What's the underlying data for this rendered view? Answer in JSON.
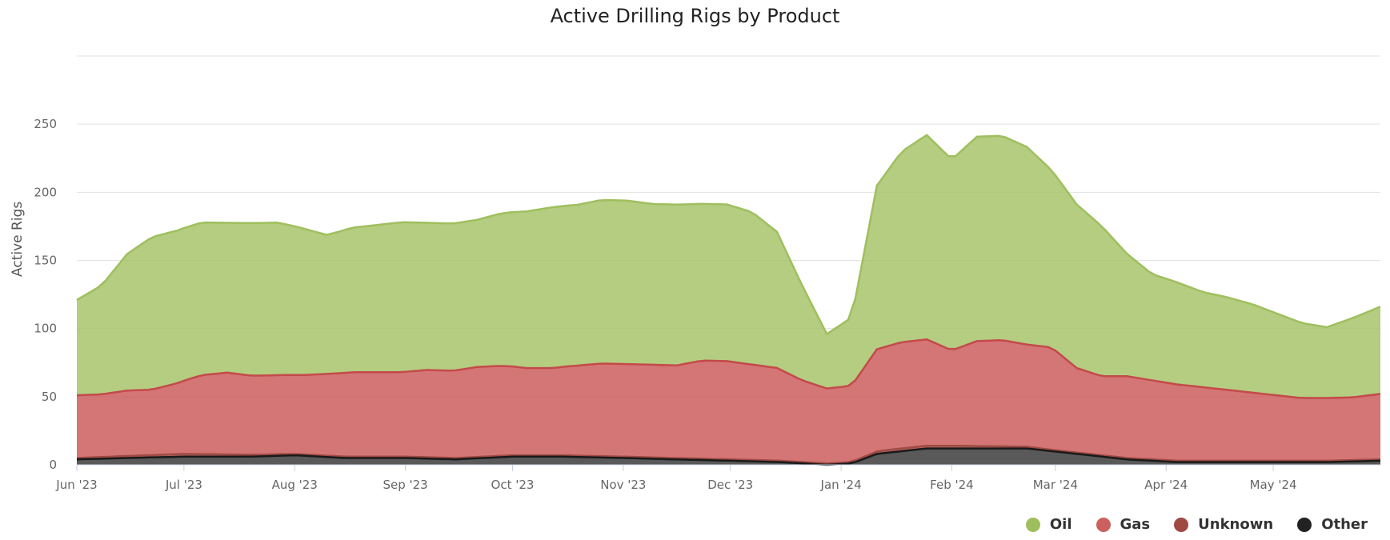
{
  "chart_data": {
    "type": "area",
    "stacked": true,
    "title": "Active Drilling Rigs by Product",
    "xlabel": "",
    "ylabel": "Active Rigs",
    "x_start": "2023-06-01",
    "x_end": "2024-05-31",
    "x_tick_labels": [
      "Jun '23",
      "Jul '23",
      "Aug '23",
      "Sep '23",
      "Oct '23",
      "Nov '23",
      "Dec '23",
      "Jan '24",
      "Feb '24",
      "Mar '24",
      "Apr '24",
      "May '24"
    ],
    "y_ticks": [
      0,
      50,
      100,
      150,
      200,
      250
    ],
    "ylim": [
      0,
      300
    ],
    "grid": true,
    "legend_position": "bottom-right",
    "series": [
      {
        "name": "Oil",
        "color": "#9fbf5e",
        "points": [
          [
            "2023-06-01",
            70
          ],
          [
            "2023-06-08",
            80
          ],
          [
            "2023-06-15",
            100
          ],
          [
            "2023-06-22",
            112
          ],
          [
            "2023-06-29",
            112
          ],
          [
            "2023-07-06",
            112
          ],
          [
            "2023-07-13",
            110
          ],
          [
            "2023-07-20",
            112
          ],
          [
            "2023-07-27",
            112
          ],
          [
            "2023-08-03",
            108
          ],
          [
            "2023-08-10",
            102
          ],
          [
            "2023-08-17",
            106
          ],
          [
            "2023-08-24",
            108
          ],
          [
            "2023-08-31",
            110
          ],
          [
            "2023-09-07",
            108
          ],
          [
            "2023-09-14",
            108
          ],
          [
            "2023-09-21",
            108
          ],
          [
            "2023-09-28",
            112
          ],
          [
            "2023-10-05",
            115
          ],
          [
            "2023-10-12",
            118
          ],
          [
            "2023-10-19",
            118
          ],
          [
            "2023-10-26",
            120
          ],
          [
            "2023-11-02",
            120
          ],
          [
            "2023-11-09",
            118
          ],
          [
            "2023-11-16",
            118
          ],
          [
            "2023-11-23",
            115
          ],
          [
            "2023-11-30",
            115
          ],
          [
            "2023-12-07",
            112
          ],
          [
            "2023-12-14",
            100
          ],
          [
            "2023-12-21",
            70
          ],
          [
            "2023-12-28",
            40
          ],
          [
            "2024-01-04",
            50
          ],
          [
            "2024-01-11",
            120
          ],
          [
            "2024-01-18",
            140
          ],
          [
            "2024-01-25",
            150
          ],
          [
            "2024-02-01",
            140
          ],
          [
            "2024-02-08",
            150
          ],
          [
            "2024-02-15",
            150
          ],
          [
            "2024-02-22",
            145
          ],
          [
            "2024-02-29",
            130
          ],
          [
            "2024-03-07",
            120
          ],
          [
            "2024-03-14",
            110
          ],
          [
            "2024-03-21",
            90
          ],
          [
            "2024-03-28",
            78
          ],
          [
            "2024-04-04",
            75
          ],
          [
            "2024-04-11",
            70
          ],
          [
            "2024-04-18",
            68
          ],
          [
            "2024-04-25",
            65
          ],
          [
            "2024-05-02",
            60
          ],
          [
            "2024-05-09",
            55
          ],
          [
            "2024-05-16",
            52
          ],
          [
            "2024-05-23",
            58
          ],
          [
            "2024-05-31",
            64
          ]
        ]
      },
      {
        "name": "Gas",
        "color": "#cc6060",
        "points": [
          [
            "2023-06-01",
            46
          ],
          [
            "2023-06-08",
            46
          ],
          [
            "2023-06-15",
            48
          ],
          [
            "2023-06-22",
            48
          ],
          [
            "2023-06-29",
            52
          ],
          [
            "2023-07-06",
            58
          ],
          [
            "2023-07-13",
            60
          ],
          [
            "2023-07-20",
            58
          ],
          [
            "2023-07-27",
            58
          ],
          [
            "2023-08-03",
            58
          ],
          [
            "2023-08-10",
            60
          ],
          [
            "2023-08-17",
            62
          ],
          [
            "2023-08-24",
            62
          ],
          [
            "2023-08-31",
            62
          ],
          [
            "2023-09-07",
            64
          ],
          [
            "2023-09-14",
            64
          ],
          [
            "2023-09-21",
            66
          ],
          [
            "2023-09-28",
            66
          ],
          [
            "2023-10-05",
            64
          ],
          [
            "2023-10-12",
            64
          ],
          [
            "2023-10-19",
            66
          ],
          [
            "2023-10-26",
            68
          ],
          [
            "2023-11-02",
            68
          ],
          [
            "2023-11-09",
            68
          ],
          [
            "2023-11-16",
            68
          ],
          [
            "2023-11-23",
            72
          ],
          [
            "2023-11-30",
            72
          ],
          [
            "2023-12-07",
            70
          ],
          [
            "2023-12-14",
            68
          ],
          [
            "2023-12-21",
            60
          ],
          [
            "2023-12-28",
            55
          ],
          [
            "2024-01-04",
            56
          ],
          [
            "2024-01-11",
            75
          ],
          [
            "2024-01-18",
            78
          ],
          [
            "2024-01-25",
            78
          ],
          [
            "2024-02-01",
            70
          ],
          [
            "2024-02-08",
            77
          ],
          [
            "2024-02-15",
            78
          ],
          [
            "2024-02-22",
            75
          ],
          [
            "2024-02-29",
            75
          ],
          [
            "2024-03-07",
            62
          ],
          [
            "2024-03-14",
            58
          ],
          [
            "2024-03-21",
            60
          ],
          [
            "2024-03-28",
            58
          ],
          [
            "2024-04-04",
            56
          ],
          [
            "2024-04-11",
            54
          ],
          [
            "2024-04-18",
            52
          ],
          [
            "2024-04-25",
            50
          ],
          [
            "2024-05-02",
            48
          ],
          [
            "2024-05-09",
            46
          ],
          [
            "2024-05-16",
            46
          ],
          [
            "2024-05-23",
            46
          ],
          [
            "2024-05-31",
            48
          ]
        ]
      },
      {
        "name": "Unknown",
        "color": "#a04a44",
        "points": [
          [
            "2023-06-01",
            1
          ],
          [
            "2023-07-01",
            2
          ],
          [
            "2023-08-01",
            1
          ],
          [
            "2023-09-01",
            1
          ],
          [
            "2023-10-01",
            1
          ],
          [
            "2023-11-01",
            1
          ],
          [
            "2023-12-01",
            1
          ],
          [
            "2024-01-01",
            1
          ],
          [
            "2024-01-15",
            2
          ],
          [
            "2024-02-01",
            2
          ],
          [
            "2024-03-01",
            1
          ],
          [
            "2024-04-01",
            1
          ],
          [
            "2024-05-01",
            1
          ],
          [
            "2024-05-31",
            1
          ]
        ]
      },
      {
        "name": "Other",
        "color": "#222222",
        "points": [
          [
            "2023-06-01",
            4
          ],
          [
            "2023-06-15",
            5
          ],
          [
            "2023-07-01",
            6
          ],
          [
            "2023-07-20",
            6
          ],
          [
            "2023-08-01",
            7
          ],
          [
            "2023-08-15",
            5
          ],
          [
            "2023-09-01",
            5
          ],
          [
            "2023-09-15",
            4
          ],
          [
            "2023-10-01",
            6
          ],
          [
            "2023-10-15",
            6
          ],
          [
            "2023-11-01",
            5
          ],
          [
            "2023-11-15",
            4
          ],
          [
            "2023-12-01",
            3
          ],
          [
            "2023-12-15",
            2
          ],
          [
            "2023-12-28",
            0
          ],
          [
            "2024-01-04",
            1
          ],
          [
            "2024-01-11",
            8
          ],
          [
            "2024-01-25",
            12
          ],
          [
            "2024-02-08",
            12
          ],
          [
            "2024-02-22",
            12
          ],
          [
            "2024-03-07",
            8
          ],
          [
            "2024-03-21",
            4
          ],
          [
            "2024-04-04",
            2
          ],
          [
            "2024-04-18",
            2
          ],
          [
            "2024-05-02",
            2
          ],
          [
            "2024-05-16",
            2
          ],
          [
            "2024-05-31",
            3
          ]
        ]
      }
    ]
  }
}
